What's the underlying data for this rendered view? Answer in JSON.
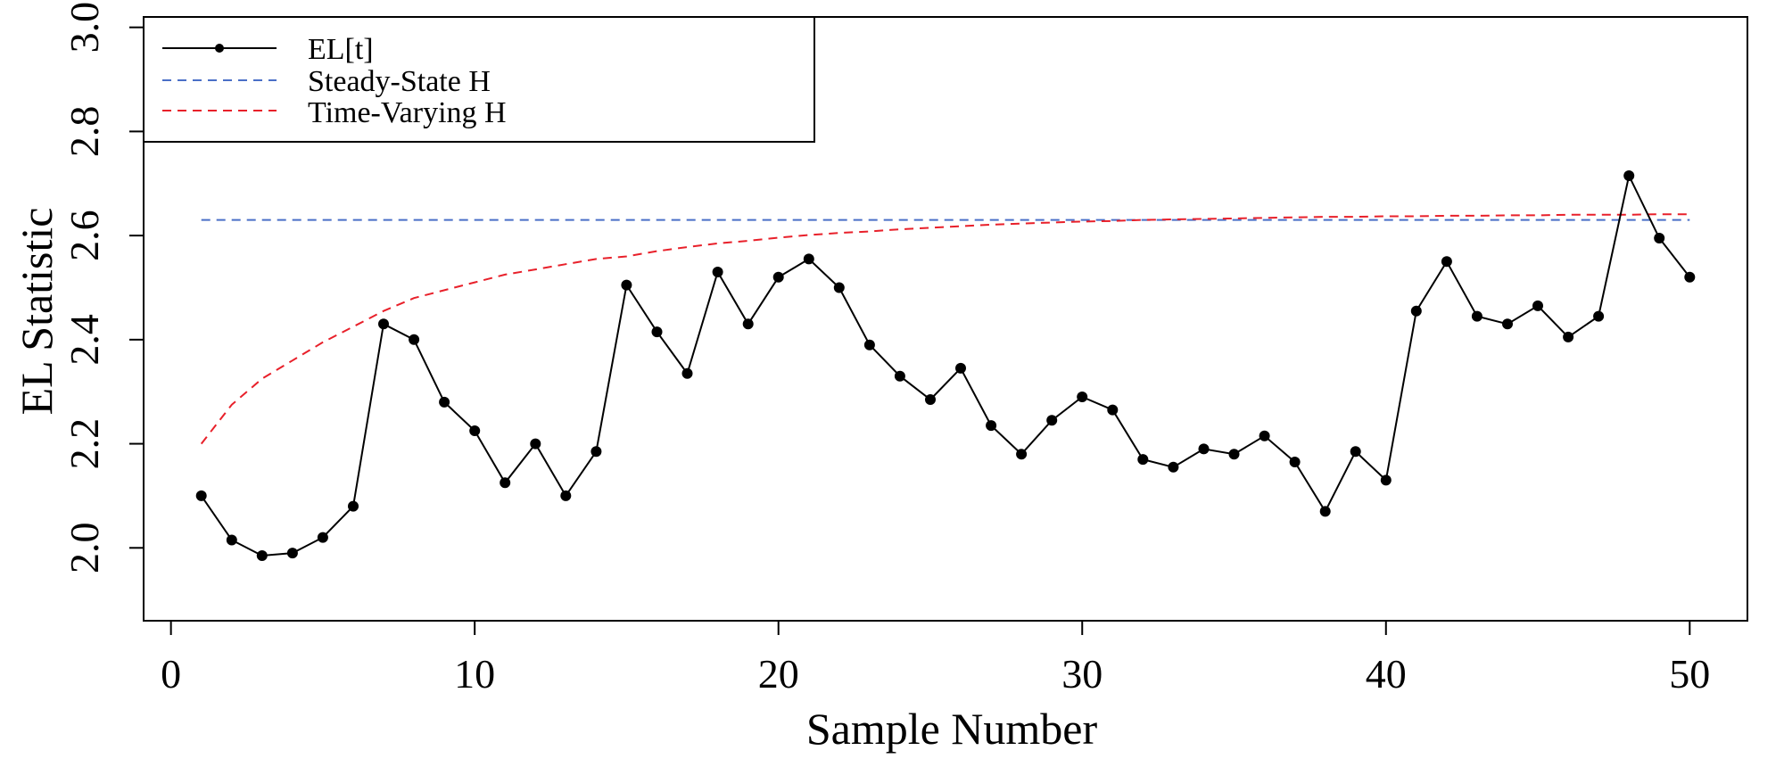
{
  "chart_data": {
    "type": "line",
    "title": "",
    "xlabel": "Sample Number",
    "ylabel": "EL Statistic",
    "xlim": [
      -0.9,
      51.9
    ],
    "ylim": [
      1.86,
      3.02
    ],
    "xticks": [
      0,
      10,
      20,
      30,
      40,
      50
    ],
    "yticks": [
      2.0,
      2.2,
      2.4,
      2.6,
      2.8,
      3.0
    ],
    "xtick_labels": [
      "0",
      "10",
      "20",
      "30",
      "40",
      "50"
    ],
    "ytick_labels": [
      "2.0",
      "2.2",
      "2.4",
      "2.6",
      "2.8",
      "3.0"
    ],
    "grid": false,
    "legend_position": "top-left",
    "legend_entries": [
      "EL[t]",
      "Steady-State H",
      "Time-Varying H"
    ],
    "colors": {
      "el": "#000000",
      "steady": "#4a6fc7",
      "varying": "#e8202a"
    },
    "x": [
      1,
      2,
      3,
      4,
      5,
      6,
      7,
      8,
      9,
      10,
      11,
      12,
      13,
      14,
      15,
      16,
      17,
      18,
      19,
      20,
      21,
      22,
      23,
      24,
      25,
      26,
      27,
      28,
      29,
      30,
      31,
      32,
      33,
      34,
      35,
      36,
      37,
      38,
      39,
      40,
      41,
      42,
      43,
      44,
      45,
      46,
      47,
      48,
      49,
      50
    ],
    "series": [
      {
        "name": "EL[t]",
        "style": "solid-with-markers",
        "values": [
          2.1,
          2.015,
          1.985,
          1.99,
          2.02,
          2.08,
          2.43,
          2.4,
          2.28,
          2.225,
          2.125,
          2.2,
          2.1,
          2.185,
          2.505,
          2.415,
          2.335,
          2.53,
          2.43,
          2.52,
          2.555,
          2.5,
          2.39,
          2.33,
          2.285,
          2.345,
          2.235,
          2.18,
          2.245,
          2.29,
          2.265,
          2.17,
          2.155,
          2.19,
          2.18,
          2.215,
          2.165,
          2.07,
          2.185,
          2.13,
          2.455,
          2.55,
          2.445,
          2.43,
          2.465,
          2.405,
          2.445,
          2.715,
          2.595,
          2.52
        ]
      },
      {
        "name": "Steady-State H",
        "style": "dashed",
        "values": [
          2.63,
          2.63,
          2.63,
          2.63,
          2.63,
          2.63,
          2.63,
          2.63,
          2.63,
          2.63,
          2.63,
          2.63,
          2.63,
          2.63,
          2.63,
          2.63,
          2.63,
          2.63,
          2.63,
          2.63,
          2.63,
          2.63,
          2.63,
          2.63,
          2.63,
          2.63,
          2.63,
          2.63,
          2.63,
          2.63,
          2.63,
          2.63,
          2.63,
          2.63,
          2.63,
          2.63,
          2.63,
          2.63,
          2.63,
          2.63,
          2.63,
          2.63,
          2.63,
          2.63,
          2.63,
          2.63,
          2.63,
          2.63,
          2.63,
          2.63
        ]
      },
      {
        "name": "Time-Varying H",
        "style": "dashed",
        "values": [
          2.2,
          2.275,
          2.325,
          2.36,
          2.395,
          2.425,
          2.455,
          2.48,
          2.495,
          2.51,
          2.525,
          2.535,
          2.545,
          2.555,
          2.56,
          2.57,
          2.578,
          2.585,
          2.59,
          2.596,
          2.601,
          2.605,
          2.608,
          2.612,
          2.615,
          2.618,
          2.621,
          2.623,
          2.625,
          2.627,
          2.628,
          2.63,
          2.631,
          2.632,
          2.633,
          2.634,
          2.635,
          2.636,
          2.636,
          2.637,
          2.637,
          2.638,
          2.638,
          2.639,
          2.639,
          2.64,
          2.64,
          2.64,
          2.641,
          2.641
        ]
      }
    ]
  }
}
